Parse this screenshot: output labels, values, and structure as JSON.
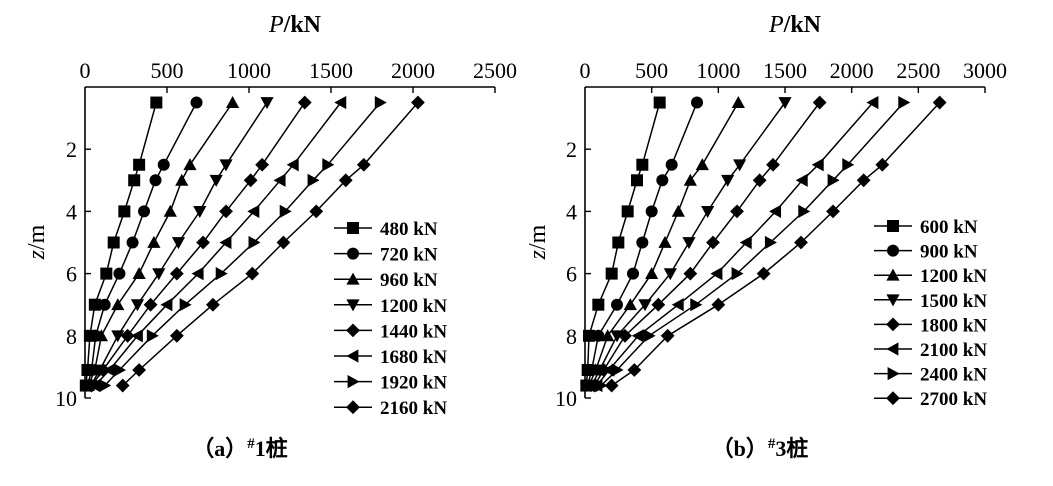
{
  "chart_data": [
    {
      "type": "line",
      "caption": "（a）#1桩",
      "xlabel": "P/kN",
      "ylabel": "z/m",
      "xlim": [
        0,
        2500
      ],
      "ylim": [
        10,
        0
      ],
      "x_ticks": [
        "0",
        "500",
        "1000",
        "1500",
        "2000",
        "2500"
      ],
      "y_ticks": [
        "2",
        "4",
        "6",
        "8",
        "10"
      ],
      "x_axis_position": "top",
      "legend_position": "bottom-right",
      "grid": false,
      "depths": [
        0.5,
        2.5,
        3.0,
        4.0,
        5.0,
        6.0,
        7.0,
        8.0,
        9.1,
        9.6
      ],
      "series": [
        {
          "name": "480 kN",
          "marker": "square",
          "values": [
            435,
            330,
            300,
            240,
            175,
            130,
            60,
            30,
            15,
            5
          ]
        },
        {
          "name": "720 kN",
          "marker": "circle",
          "values": [
            680,
            480,
            430,
            360,
            290,
            210,
            120,
            65,
            40,
            15
          ]
        },
        {
          "name": "960 kN",
          "marker": "triangle-up",
          "values": [
            900,
            640,
            590,
            520,
            420,
            330,
            200,
            100,
            60,
            20
          ]
        },
        {
          "name": "1200 kN",
          "marker": "triangle-down",
          "values": [
            1110,
            860,
            800,
            700,
            570,
            450,
            320,
            200,
            90,
            35
          ]
        },
        {
          "name": "1440 kN",
          "marker": "diamond",
          "values": [
            1340,
            1080,
            1010,
            860,
            720,
            560,
            400,
            260,
            110,
            40
          ]
        },
        {
          "name": "1680 kN",
          "marker": "triangle-left",
          "values": [
            1560,
            1270,
            1190,
            1030,
            860,
            690,
            500,
            320,
            150,
            60
          ]
        },
        {
          "name": "1920 kN",
          "marker": "triangle-right",
          "values": [
            1800,
            1480,
            1390,
            1220,
            1030,
            830,
            610,
            410,
            210,
            120
          ]
        },
        {
          "name": "2160 kN",
          "marker": "diamond",
          "values": [
            2030,
            1700,
            1590,
            1410,
            1210,
            1020,
            780,
            560,
            330,
            230
          ]
        }
      ]
    },
    {
      "type": "line",
      "caption": "（b）#3桩",
      "xlabel": "P/kN",
      "ylabel": "z/m",
      "xlim": [
        0,
        3000
      ],
      "ylim": [
        10,
        0
      ],
      "x_ticks": [
        "0",
        "500",
        "1000",
        "1500",
        "2000",
        "2500",
        "3000"
      ],
      "y_ticks": [
        "2",
        "4",
        "6",
        "8",
        "10"
      ],
      "x_axis_position": "top",
      "legend_position": "bottom-right",
      "grid": false,
      "depths": [
        0.5,
        2.5,
        3.0,
        4.0,
        5.0,
        6.0,
        7.0,
        8.0,
        9.1,
        9.6
      ],
      "series": [
        {
          "name": "600 kN",
          "marker": "square",
          "values": [
            560,
            430,
            390,
            320,
            250,
            200,
            100,
            30,
            20,
            10
          ]
        },
        {
          "name": "900 kN",
          "marker": "circle",
          "values": [
            840,
            650,
            580,
            500,
            430,
            360,
            240,
            100,
            50,
            20
          ]
        },
        {
          "name": "1200 kN",
          "marker": "triangle-up",
          "values": [
            1150,
            880,
            790,
            700,
            600,
            500,
            340,
            170,
            80,
            30
          ]
        },
        {
          "name": "1500 kN",
          "marker": "triangle-down",
          "values": [
            1500,
            1160,
            1070,
            920,
            780,
            640,
            450,
            240,
            110,
            50
          ]
        },
        {
          "name": "1800 kN",
          "marker": "diamond",
          "values": [
            1760,
            1410,
            1310,
            1140,
            960,
            790,
            550,
            300,
            140,
            70
          ]
        },
        {
          "name": "2100 kN",
          "marker": "triangle-left",
          "values": [
            2160,
            1750,
            1630,
            1430,
            1210,
            990,
            700,
            400,
            180,
            90
          ]
        },
        {
          "name": "2400 kN",
          "marker": "triangle-right",
          "values": [
            2390,
            1970,
            1860,
            1640,
            1390,
            1140,
            830,
            480,
            240,
            120
          ]
        },
        {
          "name": "2700 kN",
          "marker": "diamond",
          "values": [
            2660,
            2230,
            2090,
            1860,
            1620,
            1340,
            1000,
            620,
            370,
            200
          ]
        }
      ]
    }
  ]
}
